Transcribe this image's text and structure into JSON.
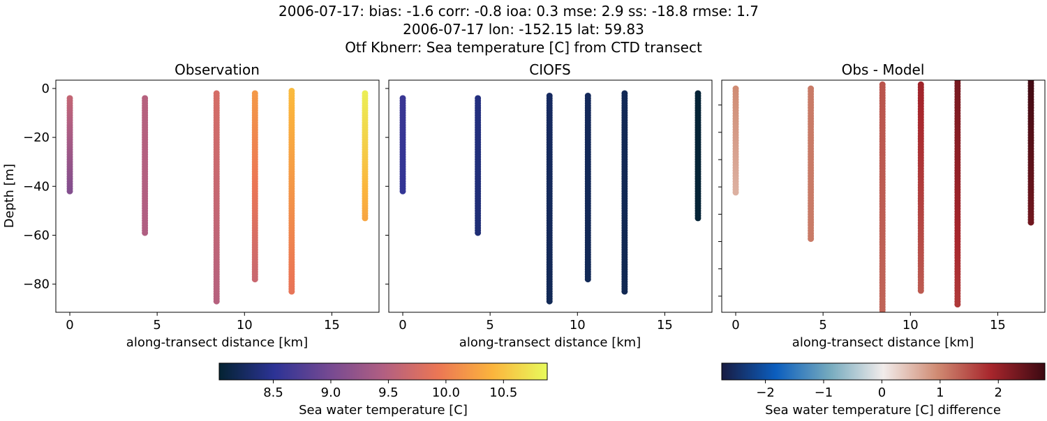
{
  "title_lines": [
    "2006-07-17: bias: -1.6  corr: -0.8  ioa: 0.3  mse: 2.9  ss: -18.8  rmse: 1.7",
    "2006-07-17 lon: -152.15 lat: 59.83",
    "Otf Kbnerr: Sea temperature [C] from CTD transect"
  ],
  "chart_data": [
    {
      "type": "scatter",
      "title": "Observation",
      "xlabel": "along-transect distance [km]",
      "ylabel": "Depth [m]",
      "xlim": [
        -0.8,
        17.7
      ],
      "ylim": [
        -91.5,
        3.4
      ],
      "xticks": [
        0,
        5,
        10,
        15
      ],
      "yticks": [
        0,
        -20,
        -40,
        -60,
        -80
      ],
      "ytick_labels_shown": true,
      "colormap": "thermal",
      "clim": [
        8.03,
        10.88
      ],
      "profiles": [
        {
          "x": 0.0,
          "depth_top": -4,
          "depth_bottom": -42,
          "value_top": 9.6,
          "value_bottom": 9.1
        },
        {
          "x": 4.3,
          "depth_top": -4,
          "depth_bottom": -59,
          "value_top": 9.5,
          "value_bottom": 9.45
        },
        {
          "x": 8.4,
          "depth_top": -2,
          "depth_bottom": -87,
          "value_top": 9.75,
          "value_bottom": 9.5
        },
        {
          "x": 10.6,
          "depth_top": -2,
          "depth_bottom": -78,
          "value_top": 10.2,
          "value_bottom": 9.65
        },
        {
          "x": 12.7,
          "depth_top": -1,
          "depth_bottom": -83,
          "value_top": 10.45,
          "value_bottom": 9.9
        },
        {
          "x": 16.9,
          "depth_top": -2,
          "depth_bottom": -53,
          "value_top": 10.8,
          "value_bottom": 10.3
        }
      ]
    },
    {
      "type": "scatter",
      "title": "CIOFS",
      "xlabel": "along-transect distance [km]",
      "ylabel": "",
      "xlim": [
        -0.8,
        17.7
      ],
      "ylim": [
        -91.5,
        3.4
      ],
      "xticks": [
        0,
        5,
        10,
        15
      ],
      "yticks": [
        0,
        -20,
        -40,
        -60,
        -80
      ],
      "ytick_labels_shown": false,
      "colormap": "thermal",
      "clim": [
        8.03,
        10.88
      ],
      "profiles": [
        {
          "x": 0.0,
          "depth_top": -4,
          "depth_bottom": -42,
          "value_top": 8.6,
          "value_bottom": 8.55
        },
        {
          "x": 4.3,
          "depth_top": -4,
          "depth_bottom": -59,
          "value_top": 8.4,
          "value_bottom": 8.35
        },
        {
          "x": 8.4,
          "depth_top": -3,
          "depth_bottom": -87,
          "value_top": 8.25,
          "value_bottom": 8.2
        },
        {
          "x": 10.6,
          "depth_top": -3,
          "depth_bottom": -78,
          "value_top": 8.22,
          "value_bottom": 8.2
        },
        {
          "x": 12.7,
          "depth_top": -2,
          "depth_bottom": -83,
          "value_top": 8.2,
          "value_bottom": 8.18
        },
        {
          "x": 16.9,
          "depth_top": -2,
          "depth_bottom": -53,
          "value_top": 8.05,
          "value_bottom": 8.05
        }
      ]
    },
    {
      "type": "scatter",
      "title": "Obs - Model",
      "xlabel": "along-transect distance [km]",
      "ylabel": "",
      "xlim": [
        -0.8,
        17.7
      ],
      "ylim": [
        -85.9,
        -0.9
      ],
      "xticks": [
        0,
        5,
        10,
        15
      ],
      "yticks": [
        -10,
        -20,
        -30,
        -40,
        -50,
        -60,
        -70,
        -80
      ],
      "ytick_labels_shown": false,
      "colormap": "balance",
      "clim": [
        -2.75,
        2.8
      ],
      "profiles": [
        {
          "x": 0.0,
          "depth_top": -4,
          "depth_bottom": -42,
          "value_top": 0.95,
          "value_bottom": 0.6
        },
        {
          "x": 4.3,
          "depth_top": -4,
          "depth_bottom": -59,
          "value_top": 1.1,
          "value_bottom": 1.1
        },
        {
          "x": 8.4,
          "depth_top": -2.5,
          "depth_bottom": -87,
          "value_top": 1.45,
          "value_bottom": 1.3
        },
        {
          "x": 10.6,
          "depth_top": -2.5,
          "depth_bottom": -78,
          "value_top": 1.95,
          "value_bottom": 1.4
        },
        {
          "x": 12.7,
          "depth_top": -1,
          "depth_bottom": -83,
          "value_top": 2.3,
          "value_bottom": 1.7
        },
        {
          "x": 16.9,
          "depth_top": -1,
          "depth_bottom": -53,
          "value_top": 2.75,
          "value_bottom": 2.35
        }
      ]
    }
  ],
  "colorbars": [
    {
      "label": "Sea water temperature [C]",
      "colormap": "thermal",
      "range": [
        8.03,
        10.88
      ],
      "ticks": [
        8.5,
        9.0,
        9.5,
        10.0,
        10.5
      ],
      "tick_labels": [
        "8.5",
        "9.0",
        "9.5",
        "10.0",
        "10.5"
      ]
    },
    {
      "label": "Sea water temperature [C] difference",
      "colormap": "balance",
      "range": [
        -2.75,
        2.8
      ],
      "ticks": [
        -2,
        -1,
        0,
        1,
        2
      ],
      "tick_labels": [
        "−2",
        "−1",
        "0",
        "1",
        "2"
      ]
    }
  ],
  "colormaps": {
    "thermal": [
      "#042333",
      "#2c3395",
      "#744992",
      "#b15f82",
      "#eb7655",
      "#fbb43d",
      "#e8fa5b"
    ],
    "balance": [
      "#181c43",
      "#0c5ebe",
      "#75aabe",
      "#f1eceb",
      "#d08b73",
      "#a7262c",
      "#3c0912"
    ]
  }
}
